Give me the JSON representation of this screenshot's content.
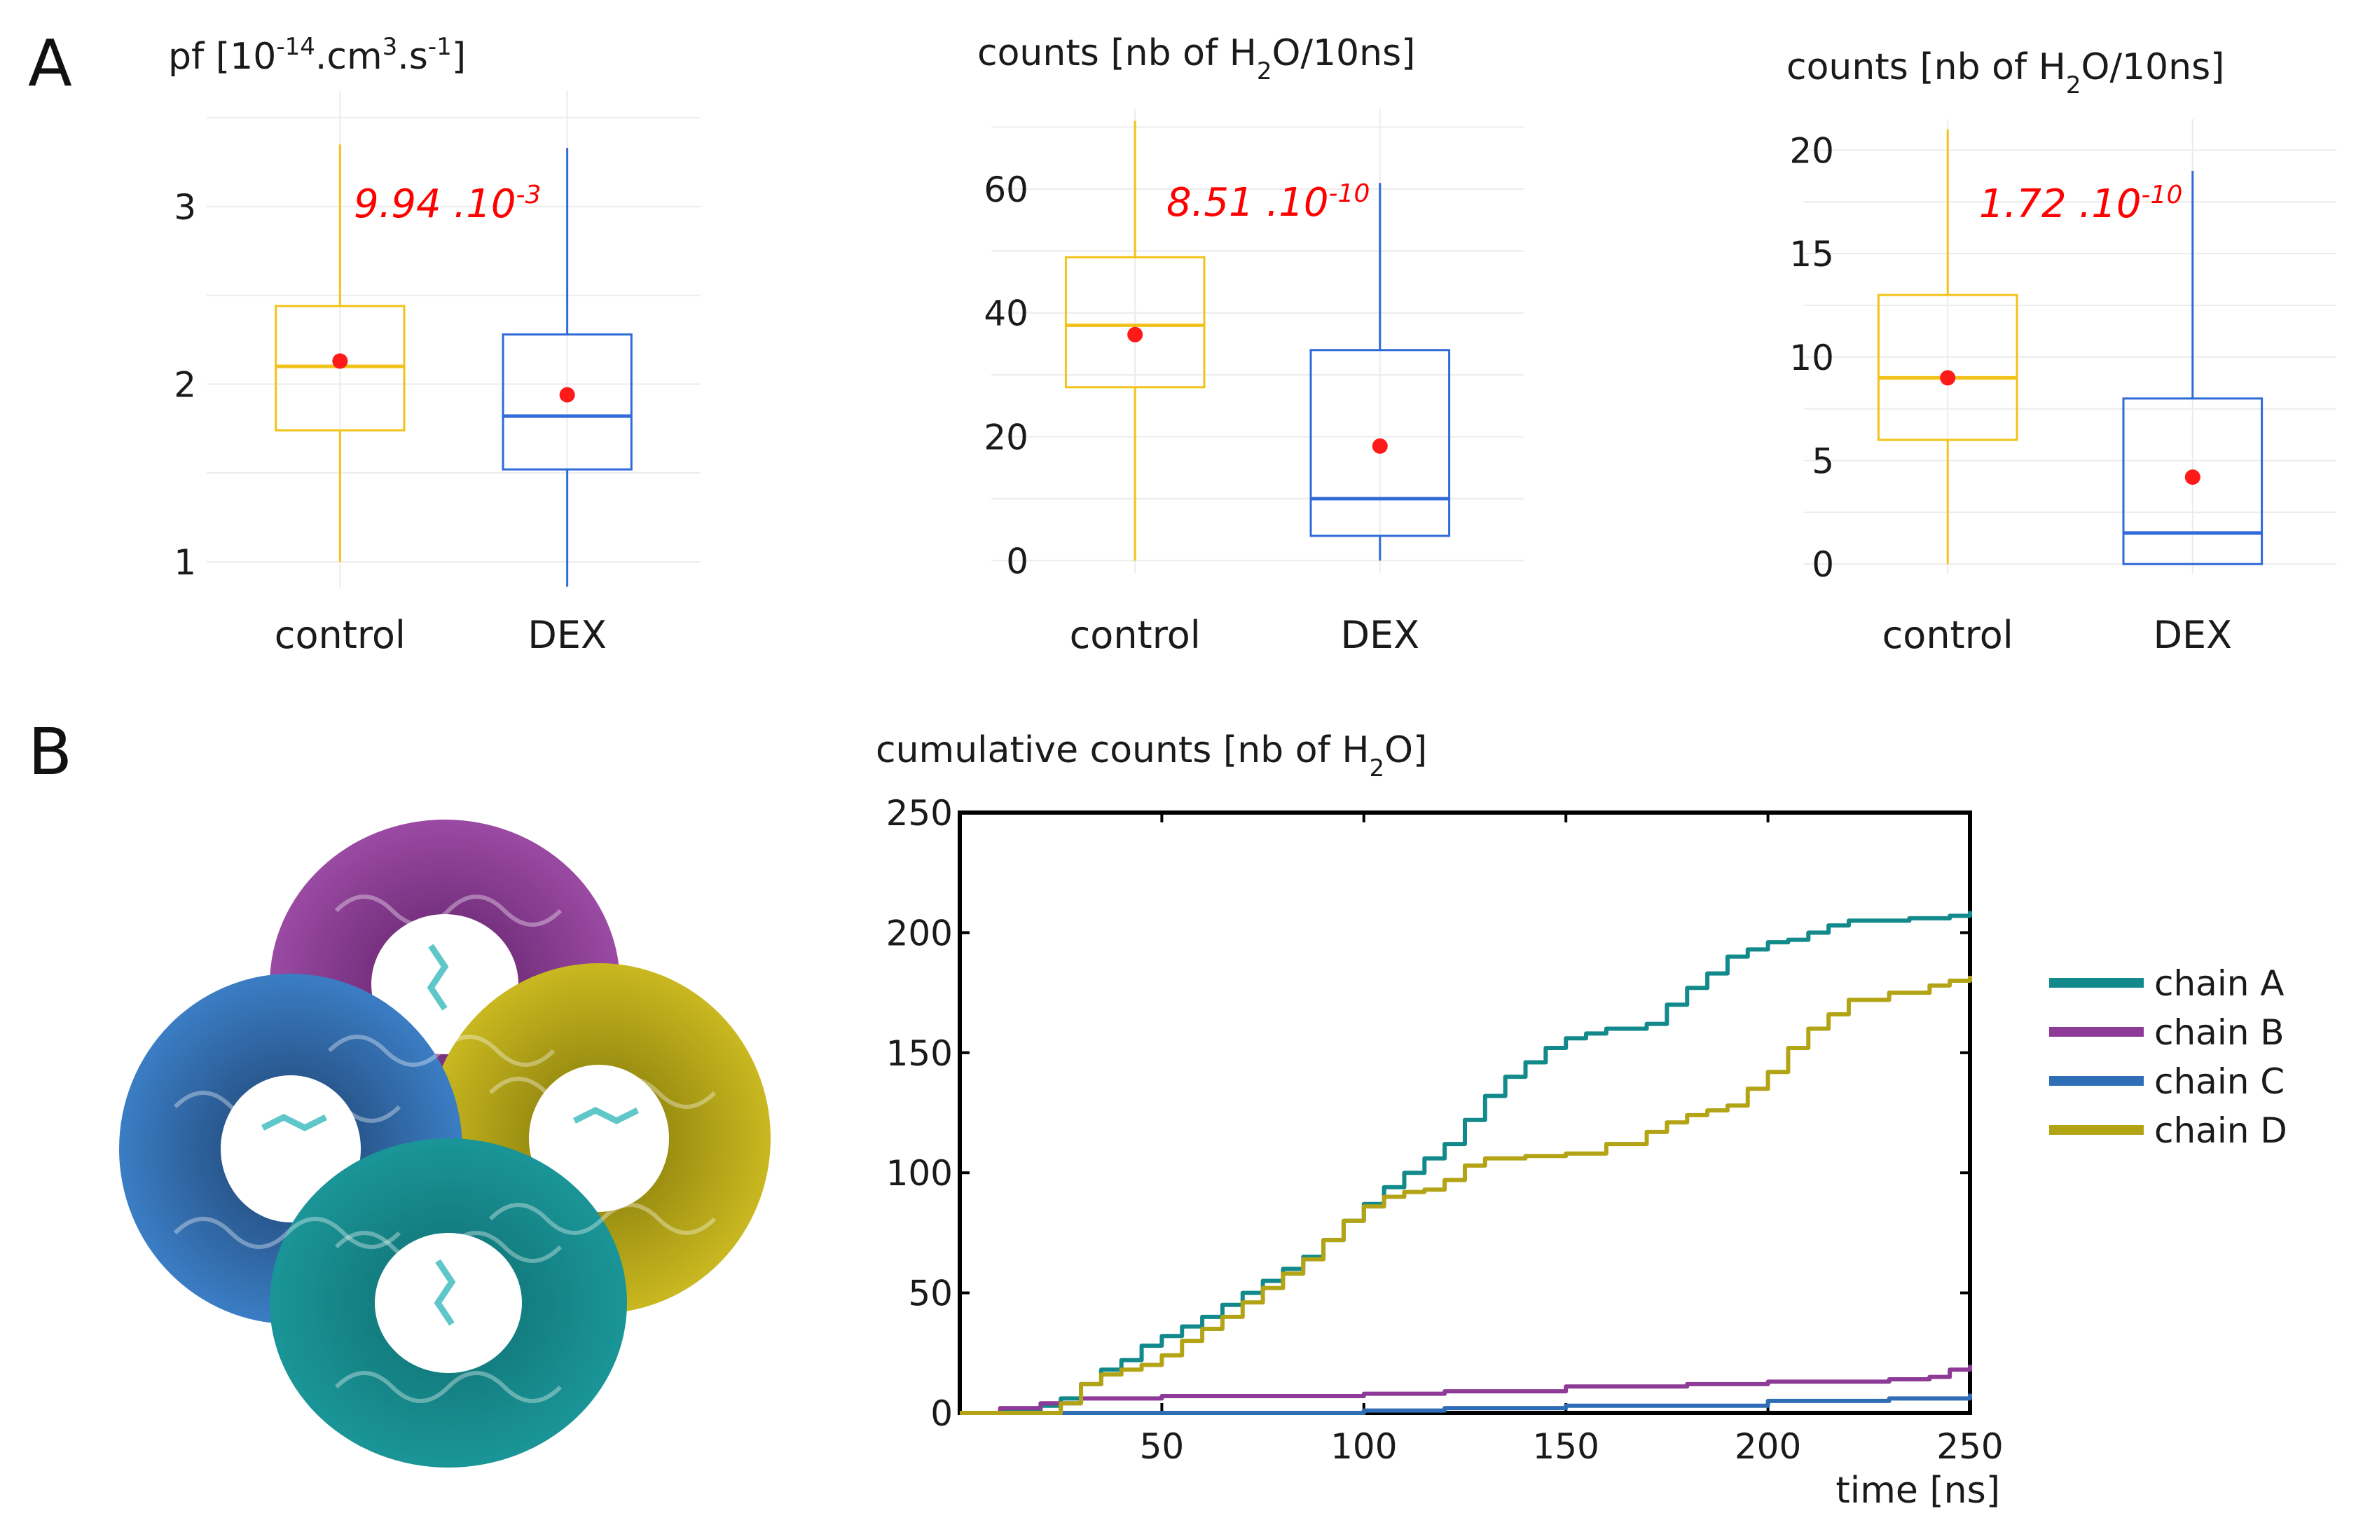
{
  "panels": {
    "a": "A",
    "b": "B"
  },
  "colors": {
    "control": "#f2c21a",
    "dex": "#2f6ad9",
    "mean": "#ff1a1a",
    "pvalue": "#ff0000",
    "grid": "#ececec",
    "chain_a": "#12898a",
    "chain_b": "#8e3b97",
    "chain_c": "#2f6db5",
    "chain_d": "#b3a416"
  },
  "chart_data": [
    {
      "type": "box",
      "id": "pf",
      "title_parts": [
        "pf [10",
        "-14",
        ".cm",
        "3",
        ".s",
        "-1",
        "]"
      ],
      "ylim": [
        0.85,
        3.65
      ],
      "yticks": [
        1,
        2,
        3
      ],
      "categories": [
        "control",
        "DEX"
      ],
      "series": [
        {
          "name": "control",
          "whisker_low": 1.0,
          "q1": 1.74,
          "median": 2.1,
          "q3": 2.44,
          "whisker_high": 3.35,
          "mean": 2.13
        },
        {
          "name": "DEX",
          "whisker_low": 0.86,
          "q1": 1.52,
          "median": 1.82,
          "q3": 2.28,
          "whisker_high": 3.33,
          "mean": 1.94
        }
      ],
      "pvalue": {
        "base": "9.94 .10",
        "exp": "-3"
      }
    },
    {
      "type": "box",
      "id": "counts1",
      "title_parts": [
        "counts [nb of H",
        "2",
        "O/10ns]"
      ],
      "ylim": [
        -2,
        73
      ],
      "yticks": [
        0,
        20,
        40,
        60
      ],
      "categories": [
        "control",
        "DEX"
      ],
      "series": [
        {
          "name": "control",
          "whisker_low": 0,
          "q1": 28,
          "median": 38,
          "q3": 49,
          "whisker_high": 71,
          "mean": 36.5
        },
        {
          "name": "DEX",
          "whisker_low": 0,
          "q1": 4,
          "median": 10,
          "q3": 34,
          "whisker_high": 61,
          "mean": 18.5
        }
      ],
      "pvalue": {
        "base": "8.51 .10",
        "exp": "-10"
      }
    },
    {
      "type": "box",
      "id": "counts2",
      "title_parts": [
        "counts [nb of H",
        "2",
        "O/10ns]"
      ],
      "ylim": [
        -0.5,
        21.5
      ],
      "yticks": [
        0,
        5,
        10,
        15,
        20
      ],
      "categories": [
        "control",
        "DEX"
      ],
      "series": [
        {
          "name": "control",
          "whisker_low": 0,
          "q1": 6,
          "median": 9,
          "q3": 13,
          "whisker_high": 21,
          "mean": 9.0
        },
        {
          "name": "DEX",
          "whisker_low": 0,
          "q1": 0,
          "median": 1.5,
          "q3": 8,
          "whisker_high": 19,
          "mean": 4.2
        }
      ],
      "pvalue": {
        "base": "1.72 .10",
        "exp": "-10"
      }
    },
    {
      "type": "line",
      "id": "cumulative",
      "title_parts": [
        "cumulative counts [nb of H",
        "2",
        "O]"
      ],
      "xlabel": "time [ns]",
      "xlim": [
        0,
        250
      ],
      "ylim": [
        0,
        250
      ],
      "xticks": [
        50,
        100,
        150,
        200,
        250
      ],
      "yticks": [
        0,
        50,
        100,
        150,
        200,
        250
      ],
      "legend_position": "right",
      "series": [
        {
          "name": "chain A",
          "color_key": "chain_a",
          "x": [
            0,
            10,
            20,
            25,
            30,
            35,
            40,
            45,
            50,
            55,
            60,
            65,
            70,
            75,
            80,
            85,
            90,
            95,
            100,
            105,
            110,
            115,
            120,
            125,
            130,
            135,
            140,
            145,
            150,
            155,
            160,
            165,
            170,
            175,
            180,
            185,
            190,
            195,
            200,
            205,
            210,
            215,
            220,
            225,
            230,
            235,
            240,
            245,
            250
          ],
          "y": [
            0,
            1,
            3,
            6,
            12,
            18,
            22,
            28,
            32,
            36,
            40,
            45,
            50,
            55,
            60,
            65,
            72,
            80,
            87,
            94,
            100,
            106,
            112,
            122,
            132,
            140,
            146,
            152,
            156,
            158,
            160,
            160,
            162,
            170,
            177,
            183,
            190,
            193,
            196,
            197,
            200,
            203,
            205,
            205,
            205,
            206,
            206,
            207,
            209
          ]
        },
        {
          "name": "chain B",
          "color_key": "chain_b",
          "x": [
            0,
            10,
            20,
            30,
            50,
            70,
            100,
            120,
            150,
            180,
            200,
            220,
            230,
            240,
            245,
            250
          ],
          "y": [
            0,
            2,
            4,
            6,
            7,
            7,
            8,
            9,
            11,
            12,
            13,
            13,
            14,
            15,
            18,
            20
          ]
        },
        {
          "name": "chain C",
          "color_key": "chain_c",
          "x": [
            0,
            50,
            100,
            120,
            150,
            200,
            230,
            250
          ],
          "y": [
            0,
            0,
            1,
            2,
            3,
            5,
            6,
            8
          ]
        },
        {
          "name": "chain D",
          "color_key": "chain_d",
          "x": [
            0,
            10,
            20,
            25,
            30,
            35,
            40,
            45,
            50,
            55,
            60,
            65,
            70,
            75,
            80,
            85,
            90,
            95,
            100,
            105,
            110,
            115,
            120,
            125,
            130,
            140,
            150,
            160,
            170,
            175,
            180,
            185,
            190,
            195,
            200,
            205,
            210,
            215,
            220,
            230,
            240,
            245,
            250
          ],
          "y": [
            0,
            0,
            0,
            4,
            12,
            16,
            18,
            20,
            24,
            30,
            35,
            40,
            46,
            52,
            58,
            64,
            72,
            80,
            86,
            90,
            92,
            93,
            97,
            103,
            106,
            107,
            108,
            112,
            117,
            121,
            124,
            126,
            128,
            135,
            142,
            152,
            160,
            166,
            172,
            175,
            178,
            180,
            182
          ]
        }
      ]
    }
  ],
  "figure": {
    "alt": "AQP tetramer cartoon, chains A-D with bound dexamethasone"
  }
}
